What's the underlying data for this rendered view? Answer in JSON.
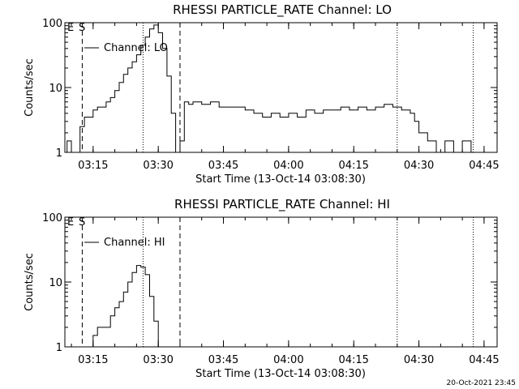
{
  "footer": {
    "timestamp": "20-Oct-2021 23:45"
  },
  "chart_data": [
    {
      "type": "line",
      "title": "RHESSI PARTICLE_RATE Channel: LO",
      "xlabel": "Start Time (13-Oct-14 03:08:30)",
      "ylabel": "Counts/sec",
      "yscale": "log",
      "ylim": [
        1,
        100
      ],
      "y_ticks": [
        "1",
        "10",
        "100"
      ],
      "x_ticks": [
        "03:15",
        "03:30",
        "03:45",
        "04:00",
        "04:15",
        "04:30",
        "04:45"
      ],
      "legend": "Channel: LO",
      "flags": {
        "E": "E",
        "S": "S"
      },
      "x": [
        "03:08:30",
        "03:09",
        "03:10",
        "03:11",
        "03:12",
        "03:13",
        "03:14",
        "03:15",
        "03:16",
        "03:17",
        "03:18",
        "03:19",
        "03:20",
        "03:21",
        "03:22",
        "03:23",
        "03:24",
        "03:25",
        "03:26",
        "03:27",
        "03:28",
        "03:29",
        "03:30",
        "03:31",
        "03:32",
        "03:33",
        "03:34",
        "03:35",
        "03:36",
        "03:37",
        "03:38",
        "03:40",
        "03:42",
        "03:44",
        "03:46",
        "03:48",
        "03:50",
        "03:52",
        "03:54",
        "03:56",
        "03:58",
        "04:00",
        "04:02",
        "04:04",
        "04:06",
        "04:08",
        "04:10",
        "04:12",
        "04:14",
        "04:16",
        "04:18",
        "04:20",
        "04:22",
        "04:24",
        "04:25",
        "04:26",
        "04:27",
        "04:28",
        "04:29",
        "04:30",
        "04:32",
        "04:34",
        "04:36",
        "04:38",
        "04:40",
        "04:42"
      ],
      "values": [
        1,
        1.5,
        1,
        1,
        2.5,
        3.5,
        3.5,
        4.5,
        5,
        5,
        6,
        7,
        9,
        12,
        16,
        20,
        25,
        32,
        45,
        60,
        80,
        92,
        70,
        40,
        15,
        4,
        1,
        1.5,
        6,
        5.5,
        6,
        5.5,
        6,
        5,
        5,
        5,
        4.5,
        4,
        3.5,
        4,
        3.5,
        4,
        3.5,
        4.5,
        4,
        4.5,
        4.5,
        5,
        4.5,
        5,
        4.5,
        5,
        5.5,
        5,
        5,
        4.5,
        4.5,
        4,
        3,
        2,
        1.5,
        1,
        1.5,
        1,
        1.5,
        1
      ],
      "markers": [
        {
          "time": "03:12:30",
          "style": "dashed"
        },
        {
          "time": "03:26:30",
          "style": "dotted"
        },
        {
          "time": "03:35:00",
          "style": "dashed"
        },
        {
          "time": "04:25:00",
          "style": "dotted"
        },
        {
          "time": "04:42:30",
          "style": "dotted"
        }
      ]
    },
    {
      "type": "line",
      "title": "RHESSI PARTICLE_RATE Channel: HI",
      "xlabel": "Start Time (13-Oct-14 03:08:30)",
      "ylabel": "Counts/sec",
      "yscale": "log",
      "ylim": [
        1,
        100
      ],
      "y_ticks": [
        "1",
        "10",
        "100"
      ],
      "x_ticks": [
        "03:15",
        "03:30",
        "03:45",
        "04:00",
        "04:15",
        "04:30",
        "04:45"
      ],
      "legend": "Channel: HI",
      "flags": {
        "E": "E",
        "S": "S"
      },
      "x": [
        "03:14",
        "03:15",
        "03:16",
        "03:17",
        "03:18",
        "03:19",
        "03:20",
        "03:21",
        "03:22",
        "03:23",
        "03:24",
        "03:25",
        "03:26",
        "03:27",
        "03:28",
        "03:29",
        "03:30"
      ],
      "values": [
        1,
        1.5,
        2,
        2,
        2,
        3,
        4,
        5,
        7,
        10,
        14,
        18,
        17,
        13,
        6,
        2.5,
        1
      ],
      "markers": [
        {
          "time": "03:12:30",
          "style": "dashed"
        },
        {
          "time": "03:26:30",
          "style": "dotted"
        },
        {
          "time": "03:35:00",
          "style": "dashed"
        },
        {
          "time": "04:25:00",
          "style": "dotted"
        },
        {
          "time": "04:42:30",
          "style": "dotted"
        }
      ]
    }
  ]
}
